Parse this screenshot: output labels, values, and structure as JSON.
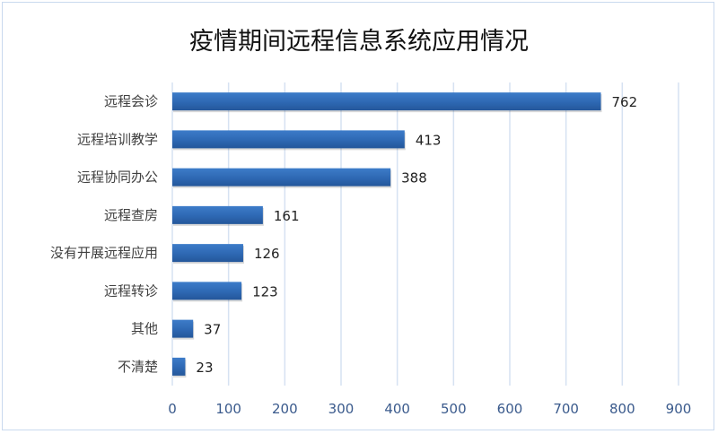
{
  "chart_data": {
    "type": "bar",
    "orientation": "horizontal",
    "title": "疫情期间远程信息系统应用情况",
    "categories": [
      "远程会诊",
      "远程培训教学",
      "远程协同办公",
      "远程查房",
      "没有开展远程应用",
      "远程转诊",
      "其他",
      "不清楚"
    ],
    "values": [
      762,
      413,
      388,
      161,
      126,
      123,
      37,
      23
    ],
    "xlim": [
      0,
      900
    ],
    "xticks": [
      "0",
      "100",
      "200",
      "300",
      "400",
      "500",
      "600",
      "700",
      "800",
      "900"
    ],
    "xlabel": "",
    "ylabel": "",
    "grid": true,
    "legend": "none",
    "bar_color": "#2e68b3",
    "grid_color": "#d6e2f2"
  }
}
